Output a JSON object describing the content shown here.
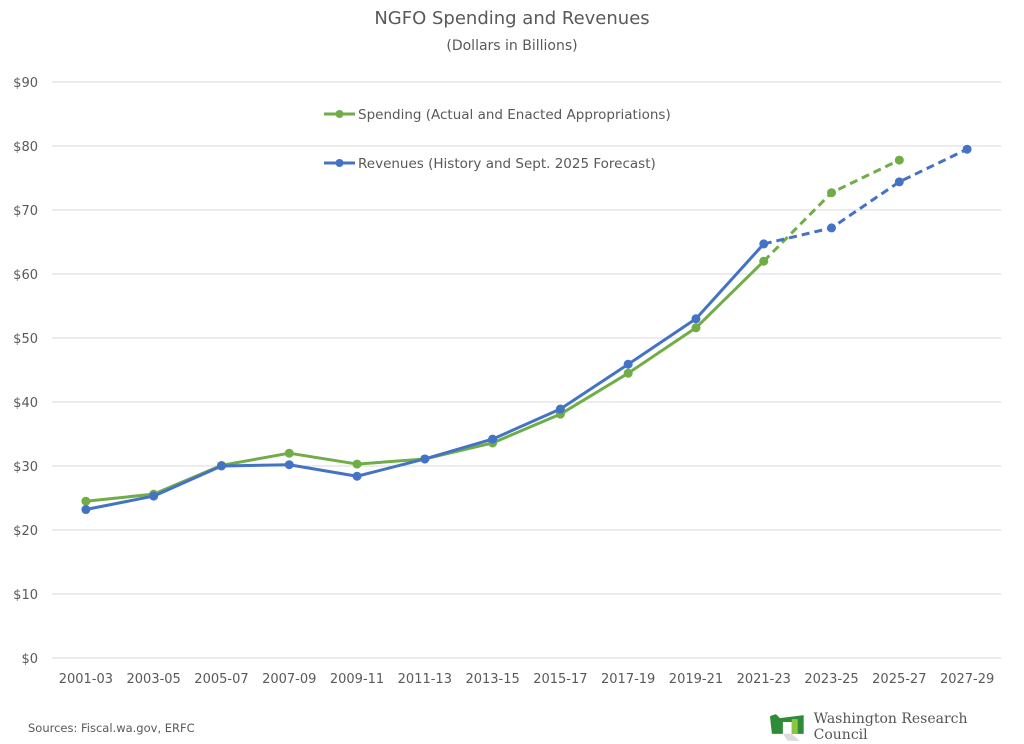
{
  "chart_data": {
    "type": "line",
    "title": "NGFO Spending and Revenues",
    "subtitle": "(Dollars in Billions)",
    "xlabel": "",
    "ylabel": "",
    "ylim": [
      0,
      90
    ],
    "ytick_step": 10,
    "ytick_prefix": "$",
    "grid": true,
    "legend_position": "top-center",
    "categories": [
      "2001-03",
      "2003-05",
      "2005-07",
      "2007-09",
      "2009-11",
      "2011-13",
      "2013-15",
      "2015-17",
      "2017-19",
      "2019-21",
      "2021-23",
      "2023-25",
      "2025-27",
      "2027-29"
    ],
    "series": [
      {
        "name": "Spending (Actual and Enacted Appropriations)",
        "color": "#70AD47",
        "values": [
          24.5,
          25.6,
          30.1,
          32.0,
          30.3,
          31.1,
          33.6,
          38.1,
          44.5,
          51.6,
          62.0,
          72.7,
          77.8,
          null
        ],
        "dashed_from_index": 10
      },
      {
        "name": "Revenues (History and Sept. 2025 Forecast)",
        "color": "#4472C4",
        "values": [
          23.2,
          25.3,
          30.0,
          30.2,
          28.4,
          31.1,
          34.2,
          38.9,
          45.9,
          53.0,
          64.7,
          67.2,
          74.4,
          79.5
        ],
        "dashed_from_index": 10
      }
    ]
  },
  "footer": {
    "source": "Sources: Fiscal.wa.gov, ERFC",
    "logo_text": "Washington Research Council"
  }
}
